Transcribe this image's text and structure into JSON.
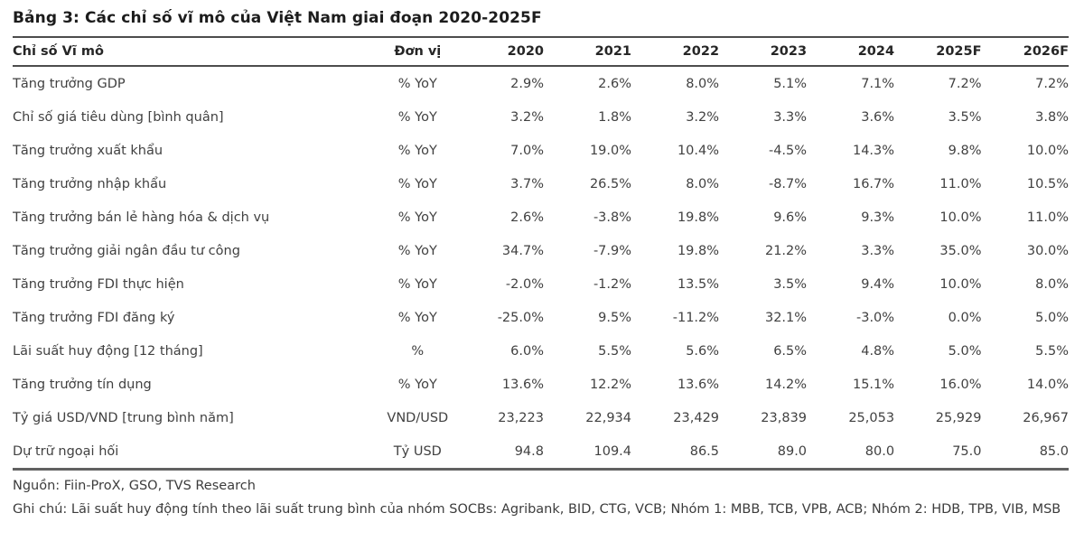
{
  "title": "Bảng 3: Các chỉ số vĩ mô của Việt Nam giai đoạn 2020-2025F",
  "table": {
    "columns": [
      "Chỉ số Vĩ mô",
      "Đơn vị",
      "2020",
      "2021",
      "2022",
      "2023",
      "2024",
      "2025F",
      "2026F"
    ],
    "rows": [
      {
        "name": "Tăng trưởng GDP",
        "unit": "% YoY",
        "values": [
          "2.9%",
          "2.6%",
          "8.0%",
          "5.1%",
          "7.1%",
          "7.2%",
          "7.2%"
        ]
      },
      {
        "name": "Chỉ số giá tiêu dùng [bình quân]",
        "unit": "% YoY",
        "values": [
          "3.2%",
          "1.8%",
          "3.2%",
          "3.3%",
          "3.6%",
          "3.5%",
          "3.8%"
        ]
      },
      {
        "name": "Tăng trưởng xuất khẩu",
        "unit": "% YoY",
        "values": [
          "7.0%",
          "19.0%",
          "10.4%",
          "-4.5%",
          "14.3%",
          "9.8%",
          "10.0%"
        ]
      },
      {
        "name": "Tăng trưởng nhập khẩu",
        "unit": "% YoY",
        "values": [
          "3.7%",
          "26.5%",
          "8.0%",
          "-8.7%",
          "16.7%",
          "11.0%",
          "10.5%"
        ]
      },
      {
        "name": "Tăng trưởng bán lẻ hàng hóa & dịch vụ",
        "unit": "% YoY",
        "values": [
          "2.6%",
          "-3.8%",
          "19.8%",
          "9.6%",
          "9.3%",
          "10.0%",
          "11.0%"
        ]
      },
      {
        "name": "Tăng trưởng giải ngân đầu tư công",
        "unit": "% YoY",
        "values": [
          "34.7%",
          "-7.9%",
          "19.8%",
          "21.2%",
          "3.3%",
          "35.0%",
          "30.0%"
        ]
      },
      {
        "name": "Tăng trưởng FDI thực hiện",
        "unit": "% YoY",
        "values": [
          "-2.0%",
          "-1.2%",
          "13.5%",
          "3.5%",
          "9.4%",
          "10.0%",
          "8.0%"
        ]
      },
      {
        "name": "Tăng trưởng FDI đăng ký",
        "unit": "% YoY",
        "values": [
          "-25.0%",
          "9.5%",
          "-11.2%",
          "32.1%",
          "-3.0%",
          "0.0%",
          "5.0%"
        ]
      },
      {
        "name": "Lãi suất huy động [12 tháng]",
        "unit": "%",
        "values": [
          "6.0%",
          "5.5%",
          "5.6%",
          "6.5%",
          "4.8%",
          "5.0%",
          "5.5%"
        ]
      },
      {
        "name": "Tăng trưởng tín dụng",
        "unit": "% YoY",
        "values": [
          "13.6%",
          "12.2%",
          "13.6%",
          "14.2%",
          "15.1%",
          "16.0%",
          "14.0%"
        ]
      },
      {
        "name": "Tỷ giá USD/VND [trung bình năm]",
        "unit": "VND/USD",
        "values": [
          "23,223",
          "22,934",
          "23,429",
          "23,839",
          "25,053",
          "25,929",
          "26,967"
        ]
      },
      {
        "name": "Dự trữ ngoại hối",
        "unit": "Tỷ USD",
        "values": [
          "94.8",
          "109.4",
          "86.5",
          "89.0",
          "80.0",
          "75.0",
          "85.0"
        ]
      }
    ]
  },
  "footer": {
    "source": "Nguồn: Fiin-ProX, GSO, TVS Research",
    "note": "Ghi chú: Lãi suất huy động tính theo lãi suất trung bình của nhóm SOCBs: Agribank, BID, CTG, VCB; Nhóm 1: MBB, TCB, VPB, ACB; Nhóm 2: HDB, TPB, VIB, MSB"
  },
  "chart_data": {
    "type": "table",
    "title": "Bảng 3: Các chỉ số vĩ mô của Việt Nam giai đoạn 2020-2025F",
    "categories": [
      "2020",
      "2021",
      "2022",
      "2023",
      "2024",
      "2025F",
      "2026F"
    ],
    "series": [
      {
        "name": "Tăng trưởng GDP (% YoY)",
        "values": [
          2.9,
          2.6,
          8.0,
          5.1,
          7.1,
          7.2,
          7.2
        ]
      },
      {
        "name": "Chỉ số giá tiêu dùng [bình quân] (% YoY)",
        "values": [
          3.2,
          1.8,
          3.2,
          3.3,
          3.6,
          3.5,
          3.8
        ]
      },
      {
        "name": "Tăng trưởng xuất khẩu (% YoY)",
        "values": [
          7.0,
          19.0,
          10.4,
          -4.5,
          14.3,
          9.8,
          10.0
        ]
      },
      {
        "name": "Tăng trưởng nhập khẩu (% YoY)",
        "values": [
          3.7,
          26.5,
          8.0,
          -8.7,
          16.7,
          11.0,
          10.5
        ]
      },
      {
        "name": "Tăng trưởng bán lẻ hàng hóa & dịch vụ (% YoY)",
        "values": [
          2.6,
          -3.8,
          19.8,
          9.6,
          9.3,
          10.0,
          11.0
        ]
      },
      {
        "name": "Tăng trưởng giải ngân đầu tư công (% YoY)",
        "values": [
          34.7,
          -7.9,
          19.8,
          21.2,
          3.3,
          35.0,
          30.0
        ]
      },
      {
        "name": "Tăng trưởng FDI thực hiện (% YoY)",
        "values": [
          -2.0,
          -1.2,
          13.5,
          3.5,
          9.4,
          10.0,
          8.0
        ]
      },
      {
        "name": "Tăng trưởng FDI đăng ký (% YoY)",
        "values": [
          -25.0,
          9.5,
          -11.2,
          32.1,
          -3.0,
          0.0,
          5.0
        ]
      },
      {
        "name": "Lãi suất huy động [12 tháng] (%)",
        "values": [
          6.0,
          5.5,
          5.6,
          6.5,
          4.8,
          5.0,
          5.5
        ]
      },
      {
        "name": "Tăng trưởng tín dụng (% YoY)",
        "values": [
          13.6,
          12.2,
          13.6,
          14.2,
          15.1,
          16.0,
          14.0
        ]
      },
      {
        "name": "Tỷ giá USD/VND [trung bình năm] (VND/USD)",
        "values": [
          23223,
          22934,
          23429,
          23839,
          25053,
          25929,
          26967
        ]
      },
      {
        "name": "Dự trữ ngoại hối (Tỷ USD)",
        "values": [
          94.8,
          109.4,
          86.5,
          89.0,
          80.0,
          75.0,
          85.0
        ]
      }
    ]
  }
}
